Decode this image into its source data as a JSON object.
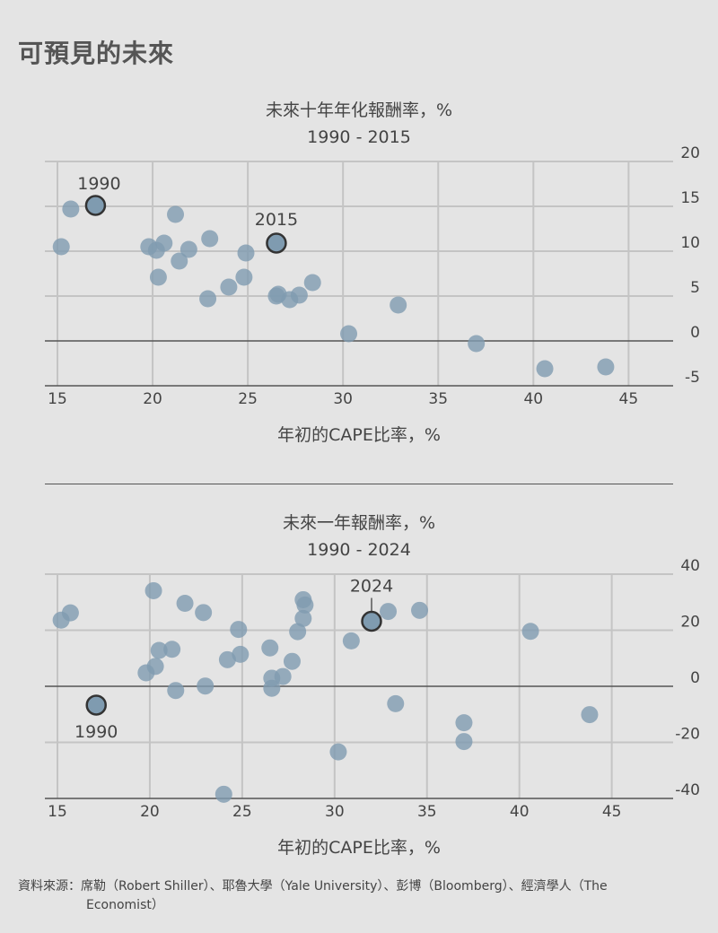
{
  "title": "可預見的未來",
  "source": {
    "line1": "資料來源：席勒（Robert Shiller）、耶魯大學（Yale University）、彭博（Bloomberg）、經濟學人（The",
    "line2": "Economist）"
  },
  "colors": {
    "point": "#7f9bb0",
    "highlight_stroke": "#333333",
    "grid": "#c4c4c4",
    "axis": "#555555"
  },
  "chart_data": [
    {
      "type": "scatter",
      "title": "未來十年年化報酬率，%",
      "subtitle": "1990 - 2015",
      "xlabel": "年初的CAPE比率，%",
      "ylabel": "",
      "xlim": [
        15,
        48
      ],
      "ylim": [
        -5,
        20
      ],
      "x_ticks": [
        15,
        20,
        25,
        30,
        35,
        40,
        45
      ],
      "y_ticks": [
        20,
        15,
        10,
        5,
        0,
        -5
      ],
      "highlight": [
        {
          "label": "1990",
          "x": 17.0,
          "y": 15.1
        },
        {
          "label": "2015",
          "x": 26.5,
          "y": 10.9
        }
      ],
      "points": [
        [
          15.2,
          10.5
        ],
        [
          15.7,
          14.7
        ],
        [
          19.8,
          10.5
        ],
        [
          20.2,
          10.1
        ],
        [
          20.3,
          7.1
        ],
        [
          20.6,
          10.9
        ],
        [
          21.2,
          14.1
        ],
        [
          21.4,
          8.9
        ],
        [
          21.9,
          10.2
        ],
        [
          22.9,
          4.7
        ],
        [
          23.0,
          11.4
        ],
        [
          24.0,
          6.0
        ],
        [
          24.8,
          7.1
        ],
        [
          24.9,
          9.8
        ],
        [
          26.5,
          5.0
        ],
        [
          26.6,
          5.2
        ],
        [
          27.2,
          4.6
        ],
        [
          27.7,
          5.1
        ],
        [
          28.4,
          6.5
        ],
        [
          30.3,
          0.8
        ],
        [
          32.9,
          4.0
        ],
        [
          37.0,
          -0.3
        ],
        [
          40.6,
          -3.1
        ],
        [
          43.8,
          -2.9
        ]
      ]
    },
    {
      "type": "scatter",
      "title": "未來一年報酬率，%",
      "subtitle": "1990 - 2024",
      "xlabel": "年初的CAPE比率，%",
      "ylabel": "",
      "xlim": [
        15,
        49
      ],
      "ylim": [
        -40,
        40
      ],
      "x_ticks": [
        15,
        20,
        25,
        30,
        35,
        40,
        45
      ],
      "y_ticks": [
        40,
        20,
        0,
        -20,
        -40
      ],
      "highlight": [
        {
          "label": "1990",
          "x": 17.1,
          "y": -6.7
        },
        {
          "label": "2024",
          "x": 32.0,
          "y": 23.2
        }
      ],
      "points": [
        [
          15.2,
          23.6
        ],
        [
          15.7,
          26.2
        ],
        [
          20.2,
          34.1
        ],
        [
          19.8,
          4.8
        ],
        [
          20.3,
          7.1
        ],
        [
          20.5,
          12.8
        ],
        [
          21.2,
          13.2
        ],
        [
          21.4,
          -1.5
        ],
        [
          21.9,
          29.6
        ],
        [
          22.9,
          26.3
        ],
        [
          23.0,
          0.1
        ],
        [
          24.0,
          -38.5
        ],
        [
          24.2,
          9.5
        ],
        [
          24.8,
          20.3
        ],
        [
          24.9,
          11.4
        ],
        [
          26.5,
          13.7
        ],
        [
          26.6,
          2.9
        ],
        [
          26.6,
          -0.7
        ],
        [
          27.2,
          3.5
        ],
        [
          27.7,
          8.9
        ],
        [
          28.0,
          19.5
        ],
        [
          28.3,
          24.2
        ],
        [
          28.3,
          30.9
        ],
        [
          28.4,
          29.0
        ],
        [
          30.2,
          -23.4
        ],
        [
          30.9,
          16.2
        ],
        [
          32.9,
          26.7
        ],
        [
          33.3,
          -6.2
        ],
        [
          34.6,
          27.1
        ],
        [
          37.0,
          -13.0
        ],
        [
          37.0,
          -19.7
        ],
        [
          40.6,
          19.6
        ],
        [
          43.8,
          -10.1
        ]
      ]
    }
  ]
}
